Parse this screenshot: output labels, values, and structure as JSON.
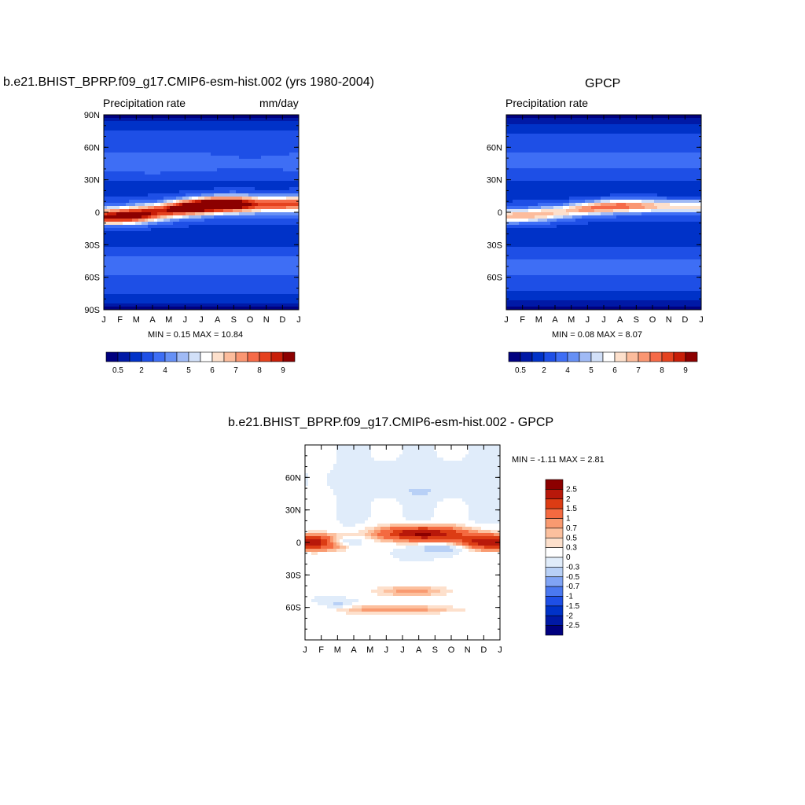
{
  "panels": [
    {
      "title": "b.e21.BHIST_BPRP.f09_g17.CMIP6-esm-hist.002 (yrs 1980-2004)",
      "left_label": "Precipitation rate",
      "right_label": "mm/day",
      "stats": "MIN =   0.15 MAX =  10.84",
      "y_ticks": [
        "90N",
        "60N",
        "30N",
        "0",
        "30S",
        "60S",
        "90S"
      ],
      "x_ticks": [
        "J",
        "F",
        "M",
        "A",
        "M",
        "J",
        "J",
        "A",
        "S",
        "O",
        "N",
        "D",
        "J"
      ],
      "colorbar_labels": [
        "0.5",
        "2",
        "4",
        "5",
        "6",
        "7",
        "8",
        "9"
      ]
    },
    {
      "title": "GPCP",
      "left_label": "Precipitation rate",
      "right_label": "",
      "stats": "MIN =   0.08 MAX =   8.07",
      "y_ticks": [
        "60N",
        "30N",
        "0",
        "30S",
        "60S"
      ],
      "x_ticks": [
        "J",
        "F",
        "M",
        "A",
        "M",
        "J",
        "J",
        "A",
        "S",
        "O",
        "N",
        "D",
        "J"
      ],
      "colorbar_labels": [
        "0.5",
        "2",
        "4",
        "5",
        "6",
        "7",
        "8",
        "9"
      ]
    },
    {
      "title": "b.e21.BHIST_BPRP.f09_g17.CMIP6-esm-hist.002 - GPCP",
      "left_label": "",
      "right_label": "",
      "stats": "MIN =  -1.11 MAX =   2.81",
      "y_ticks": [
        "60N",
        "30N",
        "0",
        "30S",
        "60S"
      ],
      "x_ticks": [
        "J",
        "F",
        "M",
        "A",
        "M",
        "J",
        "J",
        "A",
        "S",
        "O",
        "N",
        "D",
        "J"
      ],
      "colorbar_labels": [
        "2.5",
        "2",
        "1.5",
        "1",
        "0.7",
        "0.5",
        "0.3",
        "0",
        "-0.3",
        "-0.5",
        "-0.7",
        "-1",
        "-1.5",
        "-2",
        "-2.5"
      ]
    }
  ],
  "chart_data": [
    {
      "type": "heatmap",
      "title": "b.e21.BHIST_BPRP.f09_g17.CMIP6-esm-hist.002 (yrs 1980-2004)",
      "variable": "Precipitation rate",
      "units": "mm/day",
      "x": [
        "J",
        "F",
        "M",
        "A",
        "M",
        "J",
        "J",
        "A",
        "S",
        "O",
        "N",
        "D",
        "J"
      ],
      "y_range": [
        -90,
        90
      ],
      "min": 0.15,
      "max": 10.84,
      "levels": [
        0.5,
        1,
        2,
        3,
        4,
        4.5,
        5,
        5.5,
        6,
        6.5,
        7,
        7.5,
        8,
        8.5,
        9
      ],
      "colors": [
        "#00007f",
        "#0019a6",
        "#0032c8",
        "#1e4fe6",
        "#3e6ef5",
        "#6690f5",
        "#a0baf5",
        "#d2e0f8",
        "#ffffff",
        "#fde0cc",
        "#fcbc9c",
        "#fa9672",
        "#f56a48",
        "#e5421f",
        "#c81e08",
        "#8c0000"
      ]
    },
    {
      "type": "heatmap",
      "title": "GPCP",
      "variable": "Precipitation rate",
      "x": [
        "J",
        "F",
        "M",
        "A",
        "M",
        "J",
        "J",
        "A",
        "S",
        "O",
        "N",
        "D",
        "J"
      ],
      "y_range": [
        -90,
        90
      ],
      "min": 0.08,
      "max": 8.07,
      "levels": [
        0.5,
        1,
        2,
        3,
        4,
        4.5,
        5,
        5.5,
        6,
        6.5,
        7,
        7.5,
        8,
        8.5,
        9
      ]
    },
    {
      "type": "heatmap",
      "title": "b.e21.BHIST_BPRP.f09_g17.CMIP6-esm-hist.002 - GPCP",
      "x": [
        "J",
        "F",
        "M",
        "A",
        "M",
        "J",
        "J",
        "A",
        "S",
        "O",
        "N",
        "D",
        "J"
      ],
      "y_range": [
        -90,
        90
      ],
      "min": -1.11,
      "max": 2.81,
      "levels": [
        -2.5,
        -2,
        -1.5,
        -1,
        -0.7,
        -0.5,
        -0.3,
        0,
        0.3,
        0.5,
        0.7,
        1,
        1.5,
        2,
        2.5
      ],
      "colors": [
        "#00007f",
        "#0019a6",
        "#0032c8",
        "#1e4fe6",
        "#4a78f0",
        "#80a4f5",
        "#b8d0f6",
        "#e0ecfa",
        "#ffffff",
        "#fde0cc",
        "#fcc09e",
        "#f99a70",
        "#f46a40",
        "#dc3c14",
        "#b8180a",
        "#8c0000"
      ]
    }
  ]
}
